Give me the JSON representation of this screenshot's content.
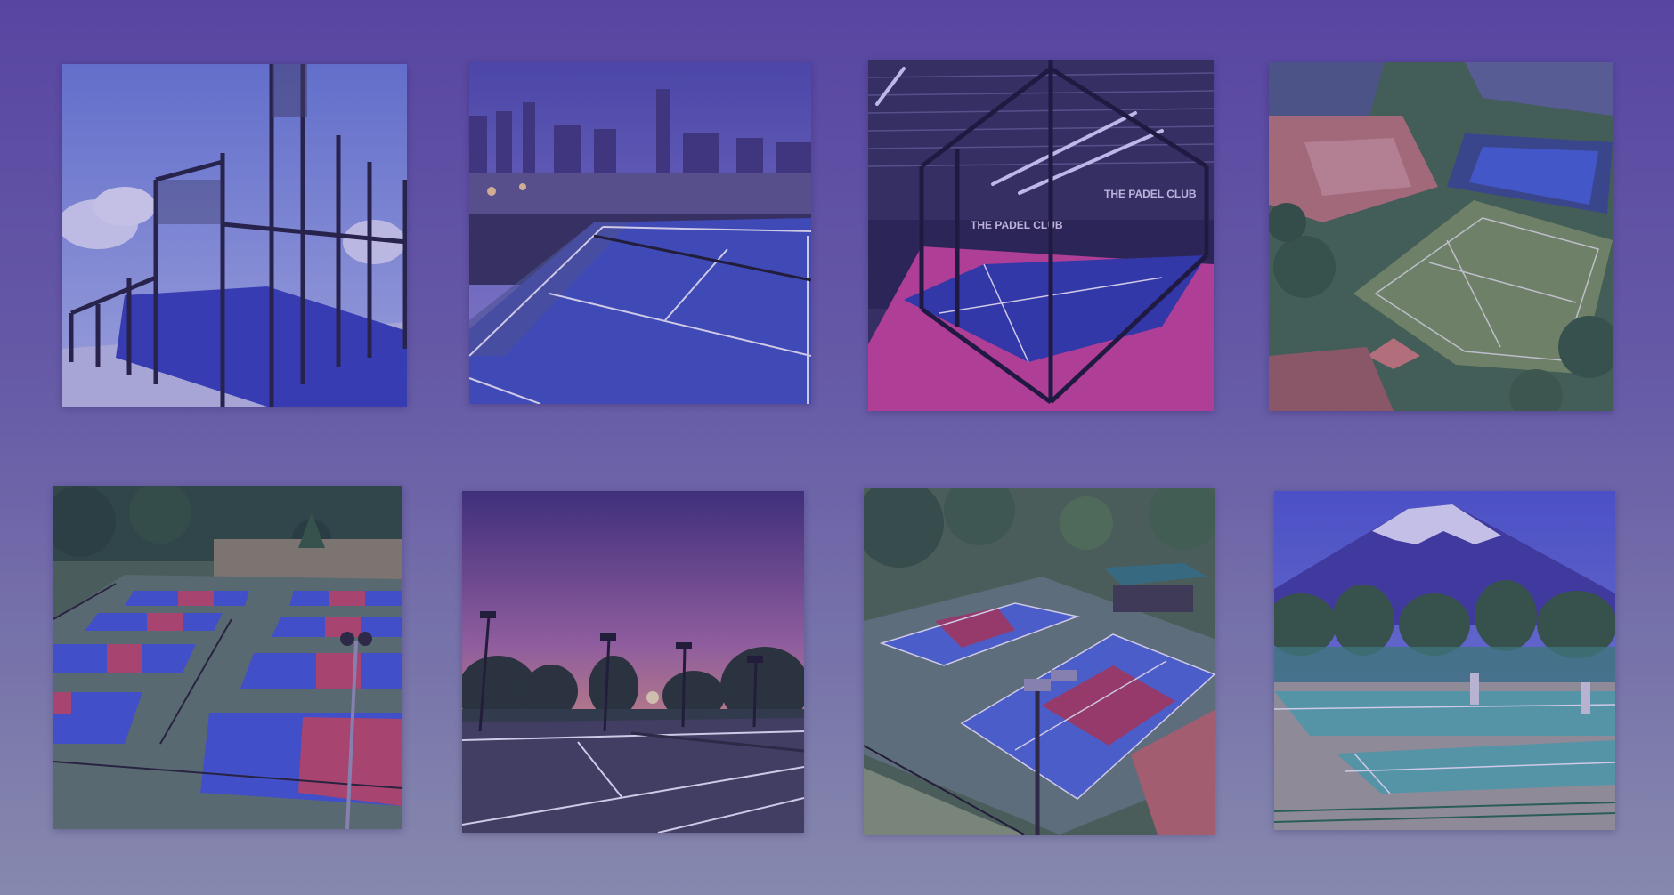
{
  "page": {
    "background_top": "#5a47a3",
    "background_bottom": "#8b8fb0"
  },
  "gallery": {
    "tiles": [
      {
        "subject": "padel court, glass and mesh fence, blue court",
        "court_color": "#3a44c8"
      },
      {
        "subject": "rooftop tennis court, city skyline at dusk",
        "court_color": "#3d56c4"
      },
      {
        "subject": "indoor padel court, magenta surround",
        "court_color": "#cf3c8c",
        "signage": [
          "THE PADEL CLUB",
          "THE PADEL CLUB"
        ]
      },
      {
        "subject": "aerial view of grass tennis courts and clubhouse",
        "court_color": "#6f8f4a"
      },
      {
        "subject": "aerial view of pickleball courts, red and blue",
        "court_color": "#3f5fd0"
      },
      {
        "subject": "tennis court at sunset with floodlights",
        "court_color": "#3f3f4a"
      },
      {
        "subject": "pickleball courts with shade pavilion",
        "court_color": "#4a6ad6"
      },
      {
        "subject": "tennis courts below snow-capped Mount Fuji",
        "court_color": "#58b6a6"
      }
    ]
  }
}
